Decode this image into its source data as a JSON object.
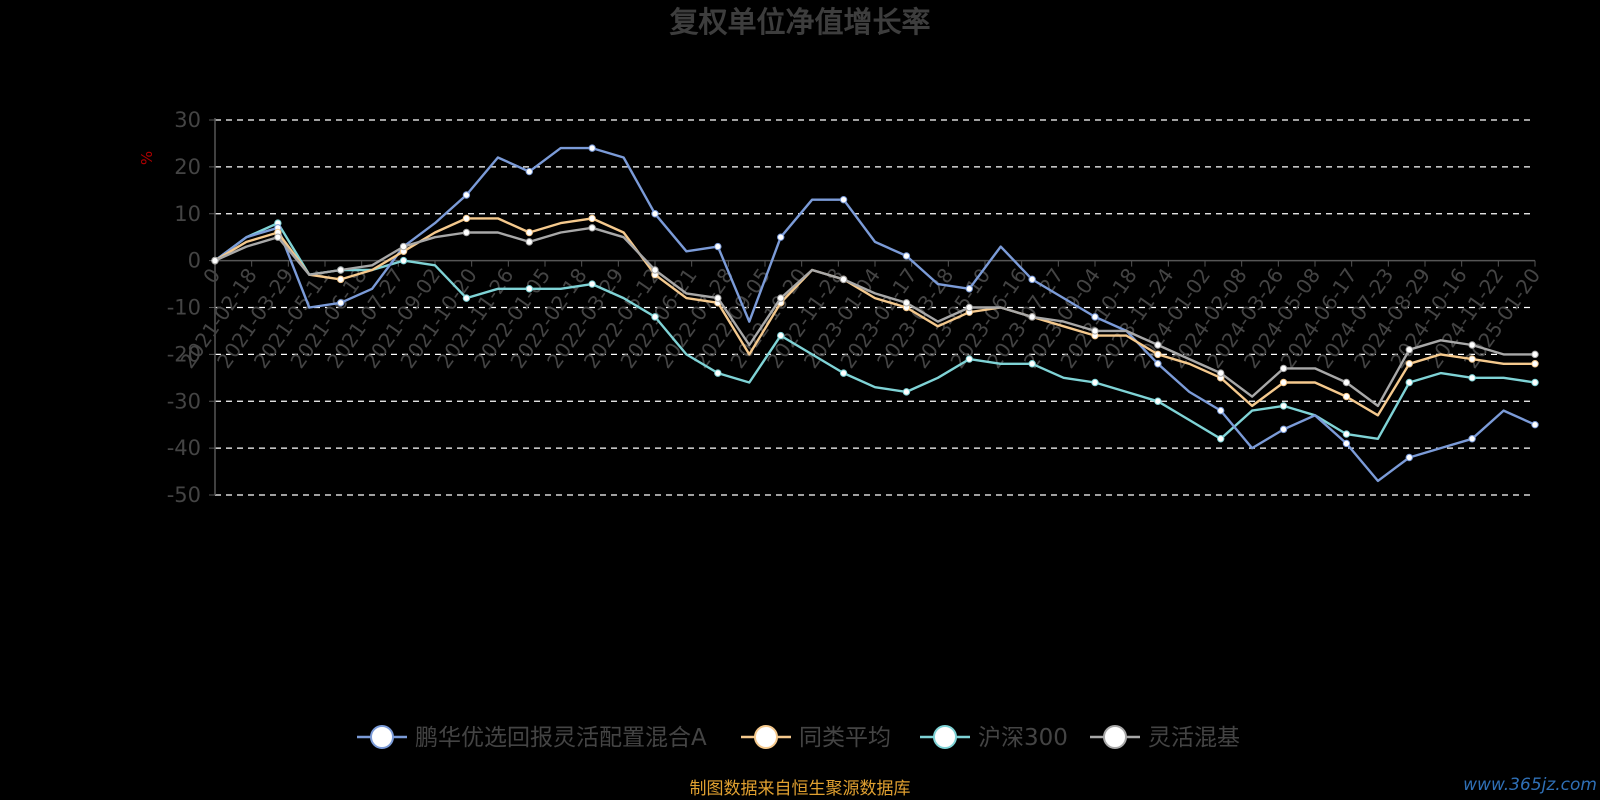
{
  "chart_data": {
    "type": "line",
    "title": "复权单位净值增长率",
    "ylabel": "%",
    "ylim": [
      -50,
      30
    ],
    "yticks": [
      30,
      20,
      10,
      0,
      -10,
      -20,
      -30,
      -40,
      -50
    ],
    "x_tick_labels": [
      "0",
      "2021-02-18",
      "2021-03-29",
      "2021-05-11",
      "2021-06-18",
      "2021-07-27",
      "2021-09-02",
      "2021-10-20",
      "2021-11-26",
      "2022-01-05",
      "2022-02-18",
      "2022-03-29",
      "2022-05-12",
      "2022-06-21",
      "2022-07-28",
      "2022-09-05",
      "2022-10-20",
      "2022-11-28",
      "2023-01-04",
      "2023-02-17",
      "2023-03-28",
      "2023-05-10",
      "2023-06-16",
      "2023-07-27",
      "2023-09-04",
      "2023-10-18",
      "2023-11-24",
      "2024-01-02",
      "2024-02-08",
      "2024-03-26",
      "2024-05-08",
      "2024-06-17",
      "2024-07-23",
      "2024-08-29",
      "2024-10-16",
      "2024-11-22",
      "2025-01-20"
    ],
    "grid": "dashed horizontal",
    "legend_position": "bottom",
    "series": [
      {
        "name": "鹏华优选回报灵活配置混合A",
        "color": "#7b9bd8",
        "values": [
          0,
          5,
          7,
          -10,
          -9,
          -6,
          3,
          8,
          14,
          22,
          19,
          24,
          24,
          22,
          10,
          2,
          3,
          -13,
          5,
          13,
          13,
          4,
          1,
          -5,
          -6,
          3,
          -4,
          -8,
          -12,
          -15,
          -22,
          -28,
          -32,
          -40,
          -36,
          -33,
          -39,
          -47,
          -42,
          -40,
          -38,
          -32,
          -35
        ]
      },
      {
        "name": "同类平均",
        "color": "#f5c98d",
        "values": [
          0,
          4,
          6,
          -3,
          -4,
          -2,
          2,
          6,
          9,
          9,
          6,
          8,
          9,
          6,
          -3,
          -8,
          -9,
          -20,
          -9,
          -2,
          -4,
          -8,
          -10,
          -14,
          -11,
          -10,
          -12,
          -14,
          -16,
          -16,
          -20,
          -22,
          -25,
          -31,
          -26,
          -26,
          -29,
          -33,
          -22,
          -20,
          -21,
          -22,
          -22
        ]
      },
      {
        "name": "沪深300",
        "color": "#7fd3d6",
        "values": [
          0,
          5,
          8,
          -3,
          -2,
          -2,
          0,
          -1,
          -8,
          -6,
          -6,
          -6,
          -5,
          -8,
          -12,
          -20,
          -24,
          -26,
          -16,
          -20,
          -24,
          -27,
          -28,
          -25,
          -21,
          -22,
          -22,
          -25,
          -26,
          -28,
          -30,
          -34,
          -38,
          -32,
          -31,
          -33,
          -37,
          -38,
          -26,
          -24,
          -25,
          -25,
          -26
        ]
      },
      {
        "name": "灵活混基",
        "color": "#a8a8a8",
        "values": [
          0,
          3,
          5,
          -3,
          -2,
          -1,
          3,
          5,
          6,
          6,
          4,
          6,
          7,
          5,
          -2,
          -7,
          -8,
          -18,
          -8,
          -2,
          -4,
          -7,
          -9,
          -13,
          -10,
          -10,
          -12,
          -13,
          -15,
          -15,
          -18,
          -21,
          -24,
          -29,
          -23,
          -23,
          -26,
          -31,
          -19,
          -17,
          -18,
          -20,
          -20
        ]
      }
    ]
  },
  "source_note": "制图数据来自恒生聚源数据库",
  "watermark": "www.365jz.com"
}
